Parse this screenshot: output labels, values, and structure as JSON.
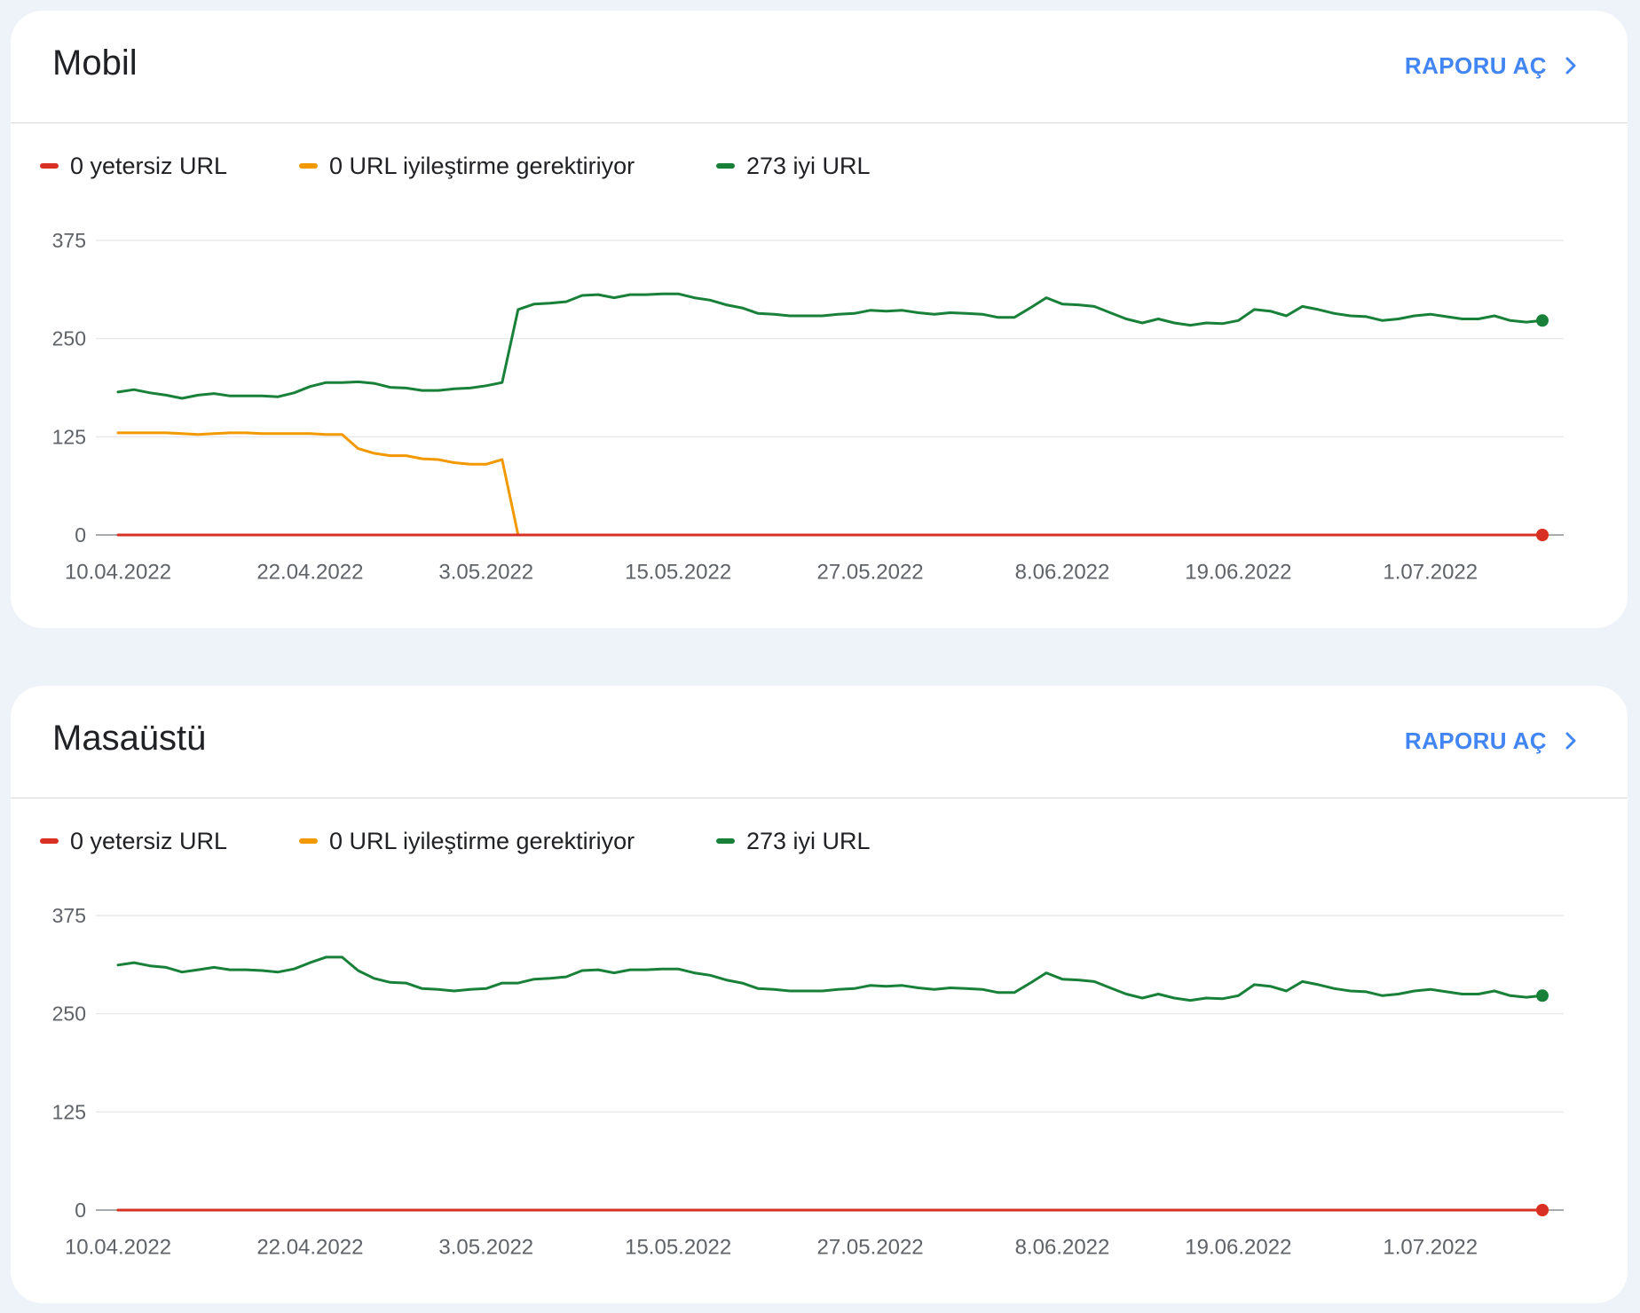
{
  "theme": {
    "page_background": "#eef2f9",
    "accent": "#4285f4"
  },
  "cards": [
    {
      "link_label": "RAPORU AÇ",
      "link_icon": "chevron-right-icon"
    },
    {
      "link_label": "RAPORU AÇ",
      "link_icon": "chevron-right-icon"
    }
  ],
  "chart_data": [
    {
      "type": "line",
      "title": "Mobil",
      "legend": "top-left",
      "grid": true,
      "ylim": [
        0,
        375
      ],
      "y_ticks": [
        0,
        125,
        250,
        375
      ],
      "x_ticks": [
        "10.04.2022",
        "22.04.2022",
        "3.05.2022",
        "15.05.2022",
        "27.05.2022",
        "8.06.2022",
        "19.06.2022",
        "1.07.2022"
      ],
      "x": [
        "10.04.2022",
        "11.04.2022",
        "12.04.2022",
        "13.04.2022",
        "14.04.2022",
        "15.04.2022",
        "16.04.2022",
        "17.04.2022",
        "18.04.2022",
        "19.04.2022",
        "20.04.2022",
        "21.04.2022",
        "22.04.2022",
        "23.04.2022",
        "24.04.2022",
        "25.04.2022",
        "26.04.2022",
        "27.04.2022",
        "28.04.2022",
        "29.04.2022",
        "30.04.2022",
        "1.05.2022",
        "2.05.2022",
        "3.05.2022",
        "4.05.2022",
        "5.05.2022",
        "6.05.2022",
        "7.05.2022",
        "8.05.2022",
        "9.05.2022",
        "10.05.2022",
        "11.05.2022",
        "12.05.2022",
        "13.05.2022",
        "14.05.2022",
        "15.05.2022",
        "16.05.2022",
        "17.05.2022",
        "18.05.2022",
        "19.05.2022",
        "20.05.2022",
        "21.05.2022",
        "22.05.2022",
        "23.05.2022",
        "24.05.2022",
        "25.05.2022",
        "26.05.2022",
        "27.05.2022",
        "28.05.2022",
        "29.05.2022",
        "30.05.2022",
        "31.05.2022",
        "1.06.2022",
        "2.06.2022",
        "3.06.2022",
        "4.06.2022",
        "5.06.2022",
        "6.06.2022",
        "7.06.2022",
        "8.06.2022",
        "9.06.2022",
        "10.06.2022",
        "11.06.2022",
        "12.06.2022",
        "13.06.2022",
        "14.06.2022",
        "15.06.2022",
        "16.06.2022",
        "17.06.2022",
        "18.06.2022",
        "19.06.2022",
        "20.06.2022",
        "21.06.2022",
        "22.06.2022",
        "23.06.2022",
        "24.06.2022",
        "25.06.2022",
        "26.06.2022",
        "27.06.2022",
        "28.06.2022",
        "29.06.2022",
        "30.06.2022",
        "1.07.2022",
        "2.07.2022",
        "3.07.2022",
        "4.07.2022",
        "5.07.2022",
        "6.07.2022",
        "7.07.2022",
        "8.07.2022"
      ],
      "series": [
        {
          "name": "0 yetersiz URL",
          "color": "#d93025",
          "values": [
            0,
            0,
            0,
            0,
            0,
            0,
            0,
            0,
            0,
            0,
            0,
            0,
            0,
            0,
            0,
            0,
            0,
            0,
            0,
            0,
            0,
            0,
            0,
            0,
            0,
            0,
            0,
            0,
            0,
            0,
            0,
            0,
            0,
            0,
            0,
            0,
            0,
            0,
            0,
            0,
            0,
            0,
            0,
            0,
            0,
            0,
            0,
            0,
            0,
            0,
            0,
            0,
            0,
            0,
            0,
            0,
            0,
            0,
            0,
            0,
            0,
            0,
            0,
            0,
            0,
            0,
            0,
            0,
            0,
            0,
            0,
            0,
            0,
            0,
            0,
            0,
            0,
            0,
            0,
            0,
            0,
            0,
            0,
            0,
            0,
            0,
            0,
            0,
            0,
            0
          ]
        },
        {
          "name": "0 URL iyileştirme gerektiriyor",
          "color": "#f29900",
          "values": [
            130,
            130,
            130,
            130,
            129,
            128,
            129,
            130,
            130,
            129,
            129,
            129,
            129,
            128,
            128,
            110,
            104,
            101,
            101,
            97,
            96,
            92,
            90,
            90,
            96,
            0,
            0,
            0,
            0,
            0,
            0,
            0,
            0,
            0,
            0,
            0,
            0,
            0,
            0,
            0,
            0,
            0,
            0,
            0,
            0,
            0,
            0,
            0,
            0,
            0,
            0,
            0,
            0,
            0,
            0,
            0,
            0,
            0,
            0,
            0,
            0,
            0,
            0,
            0,
            0,
            0,
            0,
            0,
            0,
            0,
            0,
            0,
            0,
            0,
            0,
            0,
            0,
            0,
            0,
            0,
            0,
            0,
            0,
            0,
            0,
            0,
            0,
            0,
            0,
            0
          ]
        },
        {
          "name": "273 iyi URL",
          "color": "#188038",
          "values": [
            182,
            185,
            181,
            178,
            174,
            178,
            180,
            177,
            177,
            177,
            176,
            181,
            189,
            194,
            194,
            195,
            193,
            188,
            187,
            184,
            184,
            186,
            187,
            190,
            194,
            287,
            294,
            295,
            297,
            305,
            306,
            302,
            306,
            306,
            307,
            307,
            302,
            299,
            293,
            289,
            282,
            281,
            279,
            279,
            279,
            281,
            282,
            286,
            285,
            286,
            283,
            281,
            283,
            282,
            281,
            277,
            277,
            289,
            302,
            294,
            293,
            291,
            283,
            275,
            270,
            275,
            270,
            267,
            270,
            269,
            273,
            287,
            285,
            279,
            291,
            287,
            282,
            279,
            278,
            273,
            275,
            279,
            281,
            278,
            275,
            275,
            279,
            273,
            271,
            273
          ]
        }
      ]
    },
    {
      "type": "line",
      "title": "Masaüstü",
      "legend": "top-left",
      "grid": true,
      "ylim": [
        0,
        375
      ],
      "y_ticks": [
        0,
        125,
        250,
        375
      ],
      "x_ticks": [
        "10.04.2022",
        "22.04.2022",
        "3.05.2022",
        "15.05.2022",
        "27.05.2022",
        "8.06.2022",
        "19.06.2022",
        "1.07.2022"
      ],
      "x": [
        "10.04.2022",
        "11.04.2022",
        "12.04.2022",
        "13.04.2022",
        "14.04.2022",
        "15.04.2022",
        "16.04.2022",
        "17.04.2022",
        "18.04.2022",
        "19.04.2022",
        "20.04.2022",
        "21.04.2022",
        "22.04.2022",
        "23.04.2022",
        "24.04.2022",
        "25.04.2022",
        "26.04.2022",
        "27.04.2022",
        "28.04.2022",
        "29.04.2022",
        "30.04.2022",
        "1.05.2022",
        "2.05.2022",
        "3.05.2022",
        "4.05.2022",
        "5.05.2022",
        "6.05.2022",
        "7.05.2022",
        "8.05.2022",
        "9.05.2022",
        "10.05.2022",
        "11.05.2022",
        "12.05.2022",
        "13.05.2022",
        "14.05.2022",
        "15.05.2022",
        "16.05.2022",
        "17.05.2022",
        "18.05.2022",
        "19.05.2022",
        "20.05.2022",
        "21.05.2022",
        "22.05.2022",
        "23.05.2022",
        "24.05.2022",
        "25.05.2022",
        "26.05.2022",
        "27.05.2022",
        "28.05.2022",
        "29.05.2022",
        "30.05.2022",
        "31.05.2022",
        "1.06.2022",
        "2.06.2022",
        "3.06.2022",
        "4.06.2022",
        "5.06.2022",
        "6.06.2022",
        "7.06.2022",
        "8.06.2022",
        "9.06.2022",
        "10.06.2022",
        "11.06.2022",
        "12.06.2022",
        "13.06.2022",
        "14.06.2022",
        "15.06.2022",
        "16.06.2022",
        "17.06.2022",
        "18.06.2022",
        "19.06.2022",
        "20.06.2022",
        "21.06.2022",
        "22.06.2022",
        "23.06.2022",
        "24.06.2022",
        "25.06.2022",
        "26.06.2022",
        "27.06.2022",
        "28.06.2022",
        "29.06.2022",
        "30.06.2022",
        "1.07.2022",
        "2.07.2022",
        "3.07.2022",
        "4.07.2022",
        "5.07.2022",
        "6.07.2022",
        "7.07.2022",
        "8.07.2022"
      ],
      "series": [
        {
          "name": "0 yetersiz URL",
          "color": "#d93025",
          "values": [
            0,
            0,
            0,
            0,
            0,
            0,
            0,
            0,
            0,
            0,
            0,
            0,
            0,
            0,
            0,
            0,
            0,
            0,
            0,
            0,
            0,
            0,
            0,
            0,
            0,
            0,
            0,
            0,
            0,
            0,
            0,
            0,
            0,
            0,
            0,
            0,
            0,
            0,
            0,
            0,
            0,
            0,
            0,
            0,
            0,
            0,
            0,
            0,
            0,
            0,
            0,
            0,
            0,
            0,
            0,
            0,
            0,
            0,
            0,
            0,
            0,
            0,
            0,
            0,
            0,
            0,
            0,
            0,
            0,
            0,
            0,
            0,
            0,
            0,
            0,
            0,
            0,
            0,
            0,
            0,
            0,
            0,
            0,
            0,
            0,
            0,
            0,
            0,
            0,
            0
          ]
        },
        {
          "name": "0 URL iyileştirme gerektiriyor",
          "color": "#f29900",
          "values": [
            0,
            0,
            0,
            0,
            0,
            0,
            0,
            0,
            0,
            0,
            0,
            0,
            0,
            0,
            0,
            0,
            0,
            0,
            0,
            0,
            0,
            0,
            0,
            0,
            0,
            0,
            0,
            0,
            0,
            0,
            0,
            0,
            0,
            0,
            0,
            0,
            0,
            0,
            0,
            0,
            0,
            0,
            0,
            0,
            0,
            0,
            0,
            0,
            0,
            0,
            0,
            0,
            0,
            0,
            0,
            0,
            0,
            0,
            0,
            0,
            0,
            0,
            0,
            0,
            0,
            0,
            0,
            0,
            0,
            0,
            0,
            0,
            0,
            0,
            0,
            0,
            0,
            0,
            0,
            0,
            0,
            0,
            0,
            0,
            0,
            0,
            0,
            0,
            0,
            0
          ]
        },
        {
          "name": "273 iyi URL",
          "color": "#188038",
          "values": [
            312,
            315,
            311,
            309,
            303,
            306,
            309,
            306,
            306,
            305,
            303,
            307,
            315,
            322,
            322,
            305,
            295,
            290,
            289,
            282,
            281,
            279,
            281,
            282,
            289,
            289,
            294,
            295,
            297,
            305,
            306,
            302,
            306,
            306,
            307,
            307,
            302,
            299,
            293,
            289,
            282,
            281,
            279,
            279,
            279,
            281,
            282,
            286,
            285,
            286,
            283,
            281,
            283,
            282,
            281,
            277,
            277,
            289,
            302,
            294,
            293,
            291,
            283,
            275,
            270,
            275,
            270,
            267,
            270,
            269,
            273,
            287,
            285,
            279,
            291,
            287,
            282,
            279,
            278,
            273,
            275,
            279,
            281,
            278,
            275,
            275,
            279,
            273,
            271,
            273
          ]
        }
      ]
    }
  ]
}
